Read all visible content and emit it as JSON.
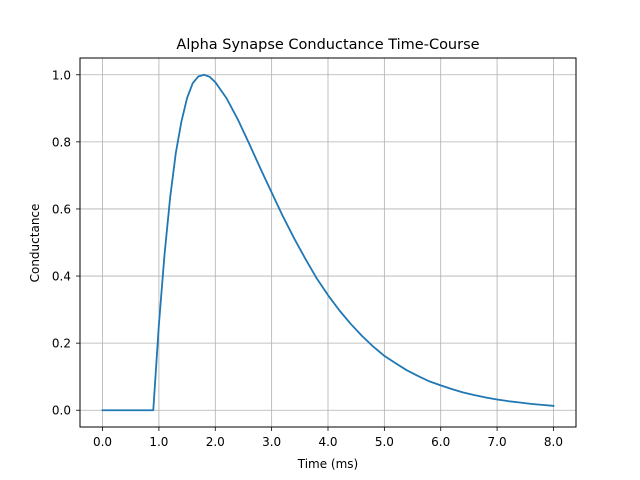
{
  "chart_data": {
    "type": "line",
    "title": "Alpha Synapse Conductance Time-Course",
    "xlabel": "Time (ms)",
    "ylabel": "Conductance",
    "xlim": [
      -0.4,
      8.4
    ],
    "ylim": [
      -0.05,
      1.05
    ],
    "xticks": [
      0.0,
      1.0,
      2.0,
      3.0,
      4.0,
      5.0,
      6.0,
      7.0,
      8.0
    ],
    "xtick_labels": [
      "0.0",
      "1.0",
      "2.0",
      "3.0",
      "4.0",
      "5.0",
      "6.0",
      "7.0",
      "8.0"
    ],
    "yticks": [
      0.0,
      0.2,
      0.4,
      0.6,
      0.8,
      1.0
    ],
    "ytick_labels": [
      "0.0",
      "0.2",
      "0.4",
      "0.6",
      "0.8",
      "1.0"
    ],
    "grid": true,
    "line_color": "#1f77b4",
    "series": [
      {
        "x": [
          0.0,
          0.2,
          0.4,
          0.6,
          0.8,
          0.9,
          1.0,
          1.1,
          1.2,
          1.3,
          1.4,
          1.5,
          1.6,
          1.7,
          1.8,
          1.9,
          2.0,
          2.2,
          2.4,
          2.6,
          2.8,
          3.0,
          3.2,
          3.4,
          3.6,
          3.8,
          4.0,
          4.2,
          4.4,
          4.6,
          4.8,
          5.0,
          5.2,
          5.4,
          5.6,
          5.8,
          6.0,
          6.2,
          6.4,
          6.6,
          6.8,
          7.0,
          7.2,
          7.4,
          7.6,
          7.8,
          8.0
        ],
        "y": [
          0.0,
          0.0,
          0.0,
          0.0,
          0.0,
          0.0,
          0.256,
          0.465,
          0.635,
          0.767,
          0.861,
          0.931,
          0.975,
          0.995,
          1.0,
          0.994,
          0.978,
          0.93,
          0.867,
          0.795,
          0.721,
          0.649,
          0.578,
          0.512,
          0.451,
          0.393,
          0.343,
          0.298,
          0.258,
          0.222,
          0.19,
          0.162,
          0.14,
          0.119,
          0.102,
          0.086,
          0.074,
          0.063,
          0.053,
          0.045,
          0.038,
          0.032,
          0.027,
          0.023,
          0.019,
          0.016,
          0.013
        ]
      }
    ]
  }
}
